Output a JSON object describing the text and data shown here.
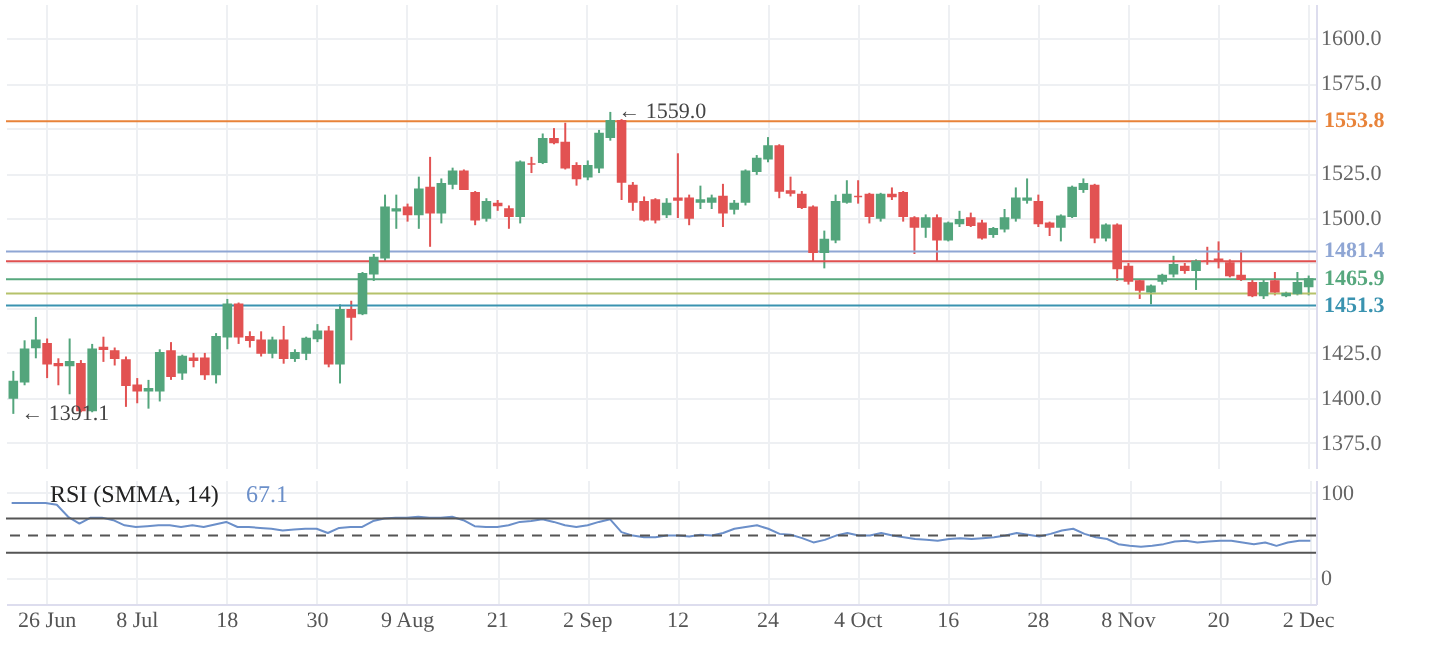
{
  "chart_data": [
    {
      "type": "candlestick",
      "categories": [
        null,
        null,
        null,
        "26 Jun",
        null,
        null,
        null,
        null,
        null,
        null,
        null,
        "8 Jul",
        null,
        null,
        null,
        null,
        null,
        null,
        null,
        "18",
        null,
        null,
        null,
        null,
        null,
        null,
        null,
        "30",
        null,
        null,
        null,
        null,
        null,
        null,
        null,
        "9 Aug",
        null,
        null,
        null,
        null,
        null,
        null,
        null,
        "21",
        null,
        null,
        null,
        null,
        null,
        null,
        null,
        "2 Sep",
        null,
        null,
        null,
        null,
        null,
        null,
        null,
        "12",
        null,
        null,
        null,
        null,
        null,
        null,
        null,
        "24",
        null,
        null,
        null,
        null,
        null,
        null,
        null,
        "4 Oct",
        null,
        null,
        null,
        null,
        null,
        null,
        null,
        "16",
        null,
        null,
        null,
        null,
        null,
        null,
        null,
        "28",
        null,
        null,
        null,
        null,
        null,
        null,
        null,
        "8 Nov",
        null,
        null,
        null,
        null,
        null,
        null,
        null,
        "20",
        null,
        null,
        null,
        null,
        null,
        null,
        null,
        "2 Dec"
      ],
      "ohlc": [
        [
          1400,
          1415,
          1391.1,
          1409
        ],
        [
          1409,
          1432,
          1407,
          1427
        ],
        [
          1428,
          1445,
          1422,
          1432
        ],
        [
          1430,
          1433,
          1411,
          1419
        ],
        [
          1419,
          1422,
          1407,
          1418
        ],
        [
          1418,
          1433,
          1402,
          1420
        ],
        [
          1419,
          1421,
          1392,
          1393
        ],
        [
          1393,
          1430,
          1392,
          1427
        ],
        [
          1428,
          1434,
          1420,
          1427
        ],
        [
          1426,
          1428,
          1418,
          1422
        ],
        [
          1421,
          1423,
          1395,
          1407
        ],
        [
          1407,
          1411,
          1397,
          1404
        ],
        [
          1404,
          1410,
          1394,
          1405
        ],
        [
          1404,
          1427,
          1398,
          1425
        ],
        [
          1426,
          1431,
          1410,
          1412
        ],
        [
          1414,
          1424,
          1410,
          1423
        ],
        [
          1422,
          1425,
          1417,
          1421
        ],
        [
          1422,
          1425,
          1410,
          1413
        ],
        [
          1413,
          1436,
          1408,
          1434
        ],
        [
          1434,
          1455,
          1427,
          1452
        ],
        [
          1452,
          1453,
          1430,
          1434
        ],
        [
          1434,
          1437,
          1428,
          1432
        ],
        [
          1432,
          1437,
          1423,
          1425
        ],
        [
          1425,
          1434,
          1422,
          1432
        ],
        [
          1432,
          1440,
          1419,
          1422
        ],
        [
          1422,
          1427,
          1420,
          1425
        ],
        [
          1425,
          1434,
          1421,
          1433
        ],
        [
          1433,
          1441,
          1431,
          1437
        ],
        [
          1437,
          1440,
          1417,
          1419
        ],
        [
          1419,
          1452,
          1408,
          1449
        ],
        [
          1449,
          1454,
          1432,
          1445
        ],
        [
          1447,
          1470,
          1446,
          1469
        ],
        [
          1469,
          1480,
          1465,
          1478
        ],
        [
          1478,
          1513,
          1476,
          1506
        ],
        [
          1504,
          1513,
          1494,
          1505
        ],
        [
          1506,
          1508,
          1498,
          1502
        ],
        [
          1502,
          1523,
          1494,
          1516
        ],
        [
          1517,
          1534,
          1484,
          1503
        ],
        [
          1503,
          1522,
          1497,
          1519
        ],
        [
          1519,
          1528,
          1516,
          1526
        ],
        [
          1526,
          1527,
          1516,
          1516
        ],
        [
          1514,
          1515,
          1496,
          1499
        ],
        [
          1500,
          1511,
          1498,
          1509
        ],
        [
          1508,
          1510,
          1504,
          1507
        ],
        [
          1505,
          1507,
          1494,
          1501
        ],
        [
          1501,
          1532,
          1497,
          1531
        ],
        [
          1530,
          1534,
          1525,
          1530
        ],
        [
          1531,
          1547,
          1530,
          1544
        ],
        [
          1544,
          1550,
          1541,
          1542
        ],
        [
          1542,
          1553,
          1527,
          1528
        ],
        [
          1529,
          1531,
          1518,
          1522
        ],
        [
          1523,
          1532,
          1521,
          1529
        ],
        [
          1528,
          1549,
          1525,
          1547
        ],
        [
          1545,
          1559.0,
          1543,
          1554
        ],
        [
          1554,
          1555,
          1510,
          1520
        ],
        [
          1518,
          1520,
          1504,
          1509
        ],
        [
          1509,
          1512,
          1498,
          1499
        ],
        [
          1510,
          1511,
          1497,
          1499
        ],
        [
          1502,
          1511,
          1500,
          1508
        ],
        [
          1511,
          1536,
          1500,
          1510
        ],
        [
          1511,
          1513,
          1496,
          1500
        ],
        [
          1509,
          1518,
          1505,
          1510
        ],
        [
          1509,
          1513,
          1505,
          1511
        ],
        [
          1512,
          1519,
          1495,
          1503
        ],
        [
          1505,
          1510,
          1502,
          1508
        ],
        [
          1509,
          1527,
          1507,
          1526
        ],
        [
          1526,
          1535,
          1524,
          1533
        ],
        [
          1533,
          1545,
          1531,
          1540
        ],
        [
          1540,
          1541,
          1511,
          1515
        ],
        [
          1515,
          1523,
          1512,
          1514
        ],
        [
          1513,
          1515,
          1505,
          1506
        ],
        [
          1506,
          1507,
          1476,
          1481
        ],
        [
          1481,
          1493,
          1472,
          1488
        ],
        [
          1488,
          1513,
          1486,
          1509
        ],
        [
          1509,
          1521,
          1508,
          1513
        ],
        [
          1512,
          1521,
          1508,
          1512
        ],
        [
          1513,
          1514,
          1497,
          1501
        ],
        [
          1500,
          1514,
          1498,
          1513
        ],
        [
          1513,
          1517,
          1510,
          1512
        ],
        [
          1514,
          1515,
          1498,
          1501
        ],
        [
          1500,
          1501,
          1480,
          1495
        ],
        [
          1495,
          1502,
          1489,
          1500
        ],
        [
          1500,
          1502,
          1476,
          1488
        ],
        [
          1488,
          1498,
          1487,
          1497
        ],
        [
          1497,
          1504,
          1495,
          1499
        ],
        [
          1500,
          1503,
          1495,
          1496
        ],
        [
          1497,
          1499,
          1488,
          1489
        ],
        [
          1491,
          1495,
          1489,
          1494
        ],
        [
          1494,
          1505,
          1492,
          1500
        ],
        [
          1500,
          1517,
          1498,
          1511
        ],
        [
          1510,
          1522,
          1508,
          1511
        ],
        [
          1509,
          1513,
          1495,
          1497
        ],
        [
          1497,
          1498,
          1490,
          1495
        ],
        [
          1495,
          1502,
          1487,
          1501
        ],
        [
          1501,
          1518,
          1500,
          1517
        ],
        [
          1516,
          1522,
          1514,
          1519
        ],
        [
          1518,
          1519,
          1486,
          1489
        ],
        [
          1489,
          1497,
          1487,
          1496
        ],
        [
          1496,
          1497,
          1465,
          1472
        ],
        [
          1473,
          1475,
          1463,
          1465
        ],
        [
          1465,
          1466,
          1455,
          1460
        ],
        [
          1459,
          1463,
          1452,
          1462
        ],
        [
          1465,
          1469,
          1463,
          1468
        ],
        [
          1469,
          1479,
          1467,
          1474
        ],
        [
          1473,
          1475,
          1469,
          1471
        ],
        [
          1471,
          1477,
          1460,
          1476
        ],
        [
          1476,
          1484,
          1474,
          1476
        ],
        [
          1477,
          1487,
          1472,
          1476
        ],
        [
          1475,
          1477,
          1467,
          1468
        ],
        [
          1468,
          1482,
          1465,
          1466
        ],
        [
          1464,
          1466,
          1456,
          1457
        ],
        [
          1457,
          1466,
          1455,
          1464
        ],
        [
          1465,
          1470,
          1457,
          1459
        ],
        [
          1457,
          1459,
          1456,
          1458
        ],
        [
          1458,
          1470,
          1457,
          1464
        ],
        [
          1462,
          1468,
          1457,
          1466
        ]
      ],
      "colors": [
        "#53a57c",
        "#53a57c",
        "#53a57c",
        "#e25252",
        "#e25252",
        "#53a57c",
        "#e25252",
        "#53a57c",
        "#e25252",
        "#e25252",
        "#e25252",
        "#e25252",
        "#53a57c",
        "#53a57c",
        "#e25252",
        "#53a57c",
        "#e25252",
        "#e25252",
        "#53a57c",
        "#53a57c",
        "#e25252",
        "#e25252",
        "#e25252",
        "#53a57c",
        "#e25252",
        "#53a57c",
        "#53a57c",
        "#53a57c",
        "#e25252",
        "#53a57c",
        "#e25252",
        "#53a57c",
        "#53a57c",
        "#53a57c",
        "#53a57c",
        "#e25252",
        "#53a57c",
        "#e25252",
        "#53a57c",
        "#53a57c",
        "#e25252",
        "#e25252",
        "#53a57c",
        "#e25252",
        "#e25252",
        "#53a57c",
        "#e25252",
        "#53a57c",
        "#e25252",
        "#e25252",
        "#e25252",
        "#53a57c",
        "#53a57c",
        "#53a57c",
        "#e25252",
        "#e25252",
        "#e25252",
        "#e25252",
        "#53a57c",
        "#e25252",
        "#e25252",
        "#53a57c",
        "#53a57c",
        "#e25252",
        "#53a57c",
        "#53a57c",
        "#53a57c",
        "#53a57c",
        "#e25252",
        "#e25252",
        "#e25252",
        "#e25252",
        "#53a57c",
        "#53a57c",
        "#53a57c",
        "#e25252",
        "#e25252",
        "#53a57c",
        "#e25252",
        "#e25252",
        "#e25252",
        "#53a57c",
        "#e25252",
        "#53a57c",
        "#53a57c",
        "#e25252",
        "#e25252",
        "#53a57c",
        "#53a57c",
        "#53a57c",
        "#53a57c",
        "#e25252",
        "#e25252",
        "#53a57c",
        "#53a57c",
        "#53a57c",
        "#e25252",
        "#53a57c",
        "#e25252",
        "#e25252",
        "#e25252",
        "#53a57c",
        "#53a57c",
        "#53a57c",
        "#e25252",
        "#53a57c",
        "#e25252",
        "#e25252",
        "#e25252",
        "#e25252",
        "#e25252",
        "#53a57c",
        "#e25252",
        "#53a57c",
        "#53a57c",
        "#53a57c"
      ],
      "ylim": [
        1361,
        1619
      ],
      "yticks": [
        {
          "value": 1375,
          "label": "1375.0"
        },
        {
          "value": 1400,
          "label": "1400.0"
        },
        {
          "value": 1425,
          "label": "1425.0"
        },
        {
          "value": 1450,
          "label": null
        },
        {
          "value": 1475,
          "label": null
        },
        {
          "value": 1500,
          "label": "1500.0"
        },
        {
          "value": 1525,
          "label": "1525.0"
        },
        {
          "value": 1550,
          "label": null
        },
        {
          "value": 1575,
          "label": "1575.0"
        },
        {
          "value": 1600,
          "label": "1600.0"
        }
      ],
      "grid": true,
      "ref_lines": [
        {
          "axis": "y",
          "value": 1553.8,
          "label": "1553.8",
          "color": "#e8833a"
        },
        {
          "axis": "y",
          "value": 1481.4,
          "label": "1481.4",
          "color": "#8fa6d4"
        },
        {
          "axis": "y",
          "value": 1465.9,
          "label": "1465.9",
          "color": "#57a87e"
        },
        {
          "axis": "y",
          "value": 1451.3,
          "label": "1451.3",
          "color": "#3a93b0"
        },
        {
          "axis": "y",
          "value": 1476,
          "label": null,
          "color": "#e05050"
        },
        {
          "axis": "y",
          "value": 1458,
          "label": null,
          "color": "#b5c26a"
        }
      ],
      "annotations": [
        {
          "text": "← 1559.0",
          "y": 1559.0
        },
        "← 1391.1"
      ]
    },
    {
      "type": "line",
      "title": "RSI (SMMA, 14)",
      "tick_labels": "y",
      "categories": [
        null,
        null,
        null,
        null,
        null,
        null,
        null,
        null,
        null,
        null,
        null,
        null,
        null,
        null,
        null,
        null,
        null,
        null,
        null,
        null,
        null,
        null,
        null,
        null,
        null,
        null,
        null,
        null,
        null,
        null,
        null,
        null,
        null,
        null,
        null,
        null,
        null,
        null,
        null,
        null,
        null,
        null,
        null,
        null,
        null,
        null,
        null,
        null,
        null,
        null,
        null,
        null,
        null,
        null,
        null,
        null,
        null,
        null,
        null,
        null,
        null,
        null,
        null,
        null,
        null,
        null,
        null,
        null,
        null,
        null,
        null,
        null,
        null,
        null,
        null,
        null,
        null,
        null,
        null,
        null,
        null,
        null,
        null,
        null,
        null,
        null,
        null,
        null,
        null,
        null,
        null,
        null,
        null,
        null,
        null,
        null,
        null,
        null,
        null,
        null,
        null,
        null,
        null,
        null,
        null,
        null,
        null,
        null,
        null,
        null,
        null,
        null,
        null,
        null,
        null,
        null
      ],
      "series": [
        {
          "color": "#6b8fc9",
          "values": [
            88,
            88,
            88,
            88,
            86,
            72,
            64,
            71,
            71,
            68,
            62,
            60,
            61,
            62,
            62,
            60,
            62,
            60,
            63,
            66,
            60,
            60,
            59,
            58,
            56,
            57,
            58,
            58,
            53,
            59,
            60,
            60,
            67,
            70,
            71,
            71,
            72,
            71,
            71,
            72,
            68,
            61,
            60,
            60,
            62,
            66,
            67,
            69,
            66,
            62,
            60,
            62,
            66,
            69,
            54,
            50,
            48,
            48,
            50,
            50,
            49,
            51,
            50,
            53,
            58,
            60,
            62,
            58,
            52,
            51,
            47,
            42,
            45,
            50,
            53,
            50,
            50,
            53,
            50,
            48,
            46,
            45,
            44,
            46,
            47,
            46,
            47,
            48,
            50,
            53,
            51,
            49,
            52,
            56,
            58,
            52,
            48,
            46,
            40,
            38,
            37,
            38,
            40,
            43,
            44,
            42,
            43,
            44,
            44,
            42,
            40,
            42,
            38,
            42,
            44,
            44
          ]
        }
      ],
      "ylim": [
        -30,
        115
      ],
      "yticks": [
        0,
        100
      ],
      "grid": true,
      "ref_lines": [
        {
          "axis": "y",
          "value": 70,
          "color": "#555555",
          "line_style": "solid"
        },
        {
          "axis": "y",
          "value": 50,
          "color": "#555555",
          "line_style": "dashed"
        },
        {
          "axis": "y",
          "value": 30,
          "color": "#555555",
          "line_style": "solid"
        }
      ],
      "annotations": [
        "67.1"
      ]
    }
  ]
}
